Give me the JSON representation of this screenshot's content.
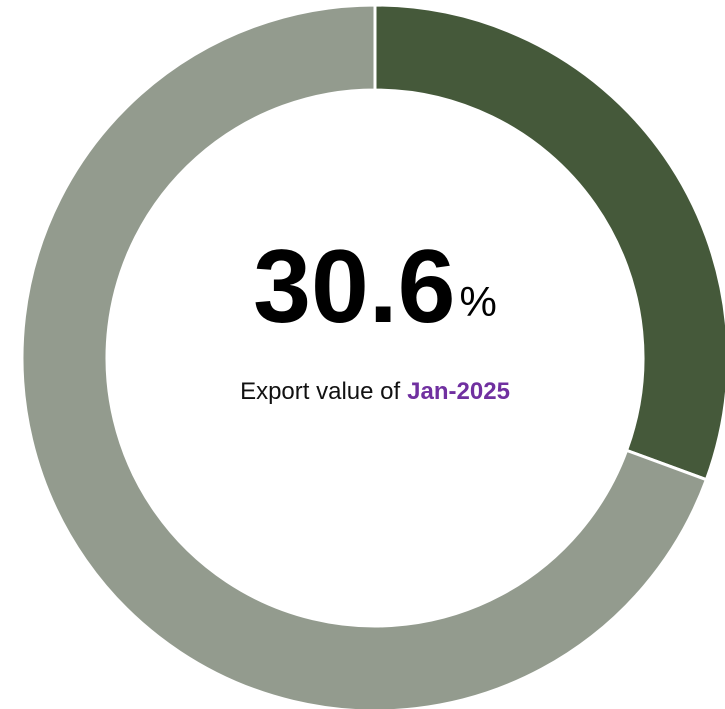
{
  "chart_data": {
    "type": "donut",
    "values": [
      30.6,
      69.4
    ],
    "colors": [
      "#45593a",
      "#939b8e"
    ],
    "unit": "%",
    "caption": "Export value of",
    "period": "Jan-2025",
    "period_color": "#7030a0"
  }
}
